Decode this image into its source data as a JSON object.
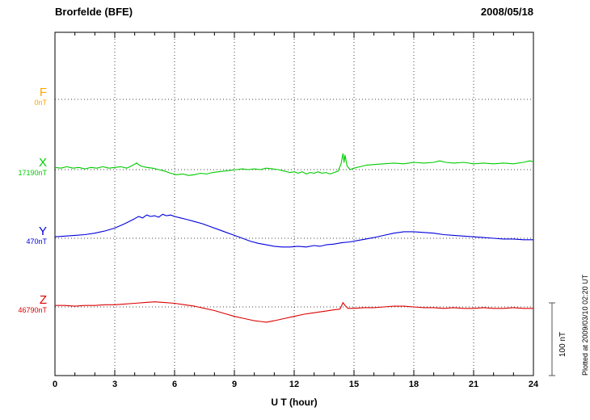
{
  "chart_data": {
    "type": "line",
    "title": "Brorfelde (BFE)",
    "date": "2008/05/18",
    "xlabel": "U T (hour)",
    "ylabel": "",
    "unit": "nT",
    "x_range": [
      0,
      24
    ],
    "x_ticks": [
      0,
      3,
      6,
      9,
      12,
      15,
      18,
      21,
      24
    ],
    "x_minor_tick_step": 1,
    "grid": "dotted vertical lines at 3-hour ticks; dotted horizontal baseline per component",
    "legend_position": "left margin, one colored label per component",
    "scale_bar": {
      "label": "100 nT",
      "nT": 100
    },
    "annotations": {
      "plotted_at": "Plotted at 2009/03/10 02:20 UT"
    },
    "points_format": "[hour_UT, deviation_nT_from_baseline]",
    "series": [
      {
        "name": "F",
        "color": "#FFA500",
        "baseline_label": "0nT",
        "baseline_nT": 0,
        "points": []
      },
      {
        "name": "X",
        "color": "#00CC00",
        "baseline_label": "17190nT",
        "baseline_nT": 17190,
        "points": [
          [
            0,
            3
          ],
          [
            0.3,
            2
          ],
          [
            0.6,
            4
          ],
          [
            0.9,
            2
          ],
          [
            1.2,
            3
          ],
          [
            1.5,
            1
          ],
          [
            1.8,
            3
          ],
          [
            2.1,
            2
          ],
          [
            2.4,
            4
          ],
          [
            2.7,
            2
          ],
          [
            3,
            3
          ],
          [
            3.3,
            4
          ],
          [
            3.6,
            2
          ],
          [
            3.9,
            6
          ],
          [
            4.1,
            9
          ],
          [
            4.3,
            5
          ],
          [
            4.6,
            3
          ],
          [
            4.9,
            2
          ],
          [
            5.2,
            0
          ],
          [
            5.5,
            -2
          ],
          [
            5.8,
            -5
          ],
          [
            6.1,
            -7
          ],
          [
            6.4,
            -6
          ],
          [
            6.7,
            -8
          ],
          [
            7,
            -7
          ],
          [
            7.3,
            -5
          ],
          [
            7.6,
            -6
          ],
          [
            7.9,
            -4
          ],
          [
            8.2,
            -3
          ],
          [
            8.5,
            -2
          ],
          [
            8.8,
            -1
          ],
          [
            9.1,
            0
          ],
          [
            9.4,
            1
          ],
          [
            9.7,
            0
          ],
          [
            10,
            1
          ],
          [
            10.3,
            0
          ],
          [
            10.6,
            2
          ],
          [
            10.9,
            1
          ],
          [
            11.2,
            0
          ],
          [
            11.5,
            -2
          ],
          [
            11.8,
            -4
          ],
          [
            12,
            -3
          ],
          [
            12.2,
            -5
          ],
          [
            12.4,
            -3
          ],
          [
            12.6,
            -6
          ],
          [
            12.8,
            -4
          ],
          [
            13,
            -5
          ],
          [
            13.2,
            -3
          ],
          [
            13.4,
            -5
          ],
          [
            13.6,
            -4
          ],
          [
            13.8,
            -6
          ],
          [
            14,
            -4
          ],
          [
            14.2,
            -2
          ],
          [
            14.35,
            8
          ],
          [
            14.45,
            22
          ],
          [
            14.5,
            10
          ],
          [
            14.55,
            20
          ],
          [
            14.65,
            5
          ],
          [
            14.8,
            0
          ],
          [
            15,
            2
          ],
          [
            15.3,
            4
          ],
          [
            15.6,
            6
          ],
          [
            16,
            7
          ],
          [
            16.5,
            8
          ],
          [
            17,
            9
          ],
          [
            17.5,
            8
          ],
          [
            18,
            10
          ],
          [
            18.5,
            9
          ],
          [
            19,
            10
          ],
          [
            19.3,
            12
          ],
          [
            19.6,
            10
          ],
          [
            20,
            9
          ],
          [
            20.5,
            10
          ],
          [
            21,
            8
          ],
          [
            21.5,
            9
          ],
          [
            22,
            8
          ],
          [
            22.5,
            9
          ],
          [
            23,
            8
          ],
          [
            23.5,
            10
          ],
          [
            23.8,
            12
          ],
          [
            24,
            11
          ]
        ]
      },
      {
        "name": "Y",
        "color": "#0000DD",
        "baseline_label": "470nT",
        "baseline_nT": 470,
        "points": [
          [
            0,
            2
          ],
          [
            0.5,
            3
          ],
          [
            1,
            4
          ],
          [
            1.5,
            5
          ],
          [
            2,
            7
          ],
          [
            2.5,
            10
          ],
          [
            3,
            14
          ],
          [
            3.5,
            20
          ],
          [
            4,
            27
          ],
          [
            4.2,
            30
          ],
          [
            4.4,
            28
          ],
          [
            4.6,
            32
          ],
          [
            4.8,
            30
          ],
          [
            5,
            31
          ],
          [
            5.2,
            29
          ],
          [
            5.4,
            33
          ],
          [
            5.6,
            31
          ],
          [
            5.8,
            32
          ],
          [
            6,
            30
          ],
          [
            6.3,
            28
          ],
          [
            6.6,
            26
          ],
          [
            7,
            23
          ],
          [
            7.4,
            20
          ],
          [
            7.8,
            16
          ],
          [
            8.2,
            12
          ],
          [
            8.6,
            8
          ],
          [
            9,
            4
          ],
          [
            9.4,
            0
          ],
          [
            9.8,
            -4
          ],
          [
            10.2,
            -7
          ],
          [
            10.6,
            -9
          ],
          [
            11,
            -11
          ],
          [
            11.4,
            -12
          ],
          [
            11.8,
            -12
          ],
          [
            12.2,
            -11
          ],
          [
            12.6,
            -12
          ],
          [
            13,
            -10
          ],
          [
            13.3,
            -11
          ],
          [
            13.6,
            -9
          ],
          [
            14,
            -8
          ],
          [
            14.4,
            -6
          ],
          [
            14.8,
            -5
          ],
          [
            15.2,
            -3
          ],
          [
            15.6,
            -1
          ],
          [
            16,
            1
          ],
          [
            16.5,
            4
          ],
          [
            17,
            7
          ],
          [
            17.5,
            9
          ],
          [
            18,
            9
          ],
          [
            18.5,
            8
          ],
          [
            19,
            7
          ],
          [
            19.5,
            5
          ],
          [
            20,
            4
          ],
          [
            20.5,
            3
          ],
          [
            21,
            2
          ],
          [
            21.5,
            1
          ],
          [
            22,
            0
          ],
          [
            22.5,
            -1
          ],
          [
            23,
            -1
          ],
          [
            23.5,
            -2
          ],
          [
            24,
            -2
          ]
        ]
      },
      {
        "name": "Z",
        "color": "#DD0000",
        "baseline_label": "46790nT",
        "baseline_nT": 46790,
        "points": [
          [
            0,
            2
          ],
          [
            0.5,
            2
          ],
          [
            1,
            1
          ],
          [
            1.5,
            2
          ],
          [
            2,
            2
          ],
          [
            2.5,
            3
          ],
          [
            3,
            3
          ],
          [
            3.5,
            4
          ],
          [
            4,
            5
          ],
          [
            4.5,
            6
          ],
          [
            5,
            7
          ],
          [
            5.5,
            6
          ],
          [
            6,
            5
          ],
          [
            6.5,
            3
          ],
          [
            7,
            1
          ],
          [
            7.5,
            -2
          ],
          [
            8,
            -5
          ],
          [
            8.5,
            -9
          ],
          [
            9,
            -13
          ],
          [
            9.5,
            -16
          ],
          [
            10,
            -19
          ],
          [
            10.3,
            -20
          ],
          [
            10.6,
            -21
          ],
          [
            11,
            -19
          ],
          [
            11.5,
            -16
          ],
          [
            12,
            -13
          ],
          [
            12.5,
            -10
          ],
          [
            13,
            -8
          ],
          [
            13.5,
            -6
          ],
          [
            14,
            -4
          ],
          [
            14.3,
            -3
          ],
          [
            14.45,
            6
          ],
          [
            14.55,
            2
          ],
          [
            14.7,
            -2
          ],
          [
            15,
            -2
          ],
          [
            15.5,
            -1
          ],
          [
            16,
            -1
          ],
          [
            16.5,
            0
          ],
          [
            17,
            1
          ],
          [
            17.5,
            1
          ],
          [
            18,
            0
          ],
          [
            18.5,
            -1
          ],
          [
            19,
            -1
          ],
          [
            19.5,
            -2
          ],
          [
            20,
            -1
          ],
          [
            20.5,
            -2
          ],
          [
            21,
            -2
          ],
          [
            21.5,
            -1
          ],
          [
            22,
            -2
          ],
          [
            22.5,
            -2
          ],
          [
            23,
            -1
          ],
          [
            23.5,
            -2
          ],
          [
            24,
            -2
          ]
        ]
      }
    ]
  }
}
